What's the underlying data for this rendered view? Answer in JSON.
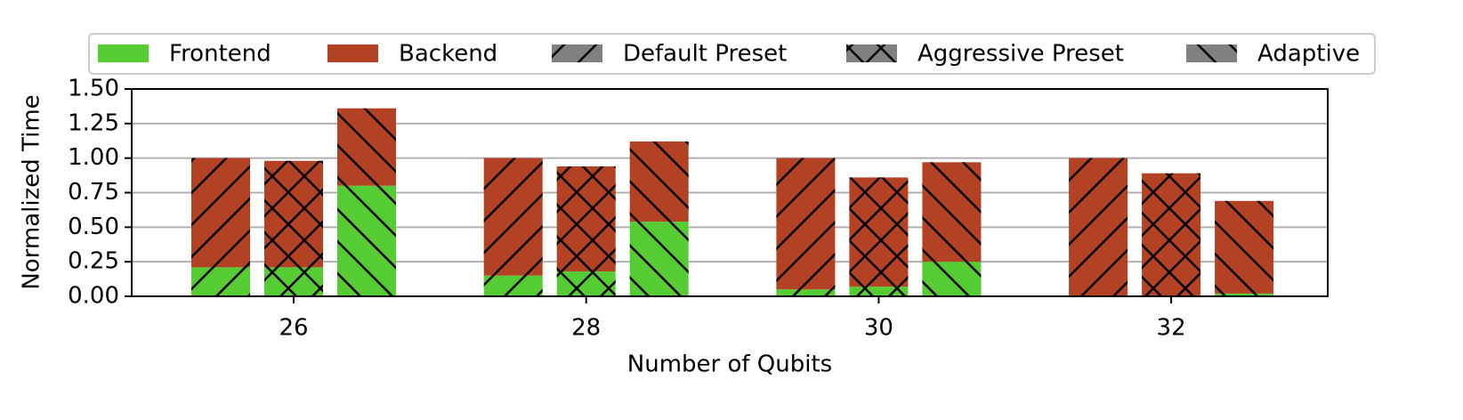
{
  "chart_data": {
    "type": "stacked_grouped_bar",
    "xlabel": "Number of Qubits",
    "ylabel": "Normalized Time",
    "categories": [
      "26",
      "28",
      "30",
      "32"
    ],
    "components": [
      {
        "name": "Frontend",
        "color": "#55cc33"
      },
      {
        "name": "Backend",
        "color": "#b34225"
      }
    ],
    "series": [
      {
        "name": "Default Preset",
        "hatch": "/",
        "color": "#808080",
        "values": [
          [
            0.21,
            0.79
          ],
          [
            0.15,
            0.85
          ],
          [
            0.05,
            0.95
          ],
          [
            0.0,
            1.0
          ]
        ]
      },
      {
        "name": "Aggressive Preset",
        "hatch": "x",
        "color": "#808080",
        "values": [
          [
            0.21,
            0.77
          ],
          [
            0.18,
            0.76
          ],
          [
            0.07,
            0.79
          ],
          [
            0.0,
            0.89
          ]
        ]
      },
      {
        "name": "Adaptive",
        "hatch": "\\",
        "color": "#808080",
        "values": [
          [
            0.8,
            0.56
          ],
          [
            0.54,
            0.58
          ],
          [
            0.25,
            0.72
          ],
          [
            0.02,
            0.67
          ]
        ]
      }
    ],
    "ylim": [
      0,
      1.5
    ],
    "yticks": [
      {
        "value": 0,
        "label": "0.00"
      },
      {
        "value": 0.25,
        "label": "0.25"
      },
      {
        "value": 0.5,
        "label": "0.50"
      },
      {
        "value": 0.75,
        "label": "0.75"
      },
      {
        "value": 1,
        "label": "1.00"
      },
      {
        "value": 1.25,
        "label": "1.25"
      },
      {
        "value": 1.5,
        "label": "1.50"
      }
    ],
    "grid": true,
    "legend": "top"
  }
}
